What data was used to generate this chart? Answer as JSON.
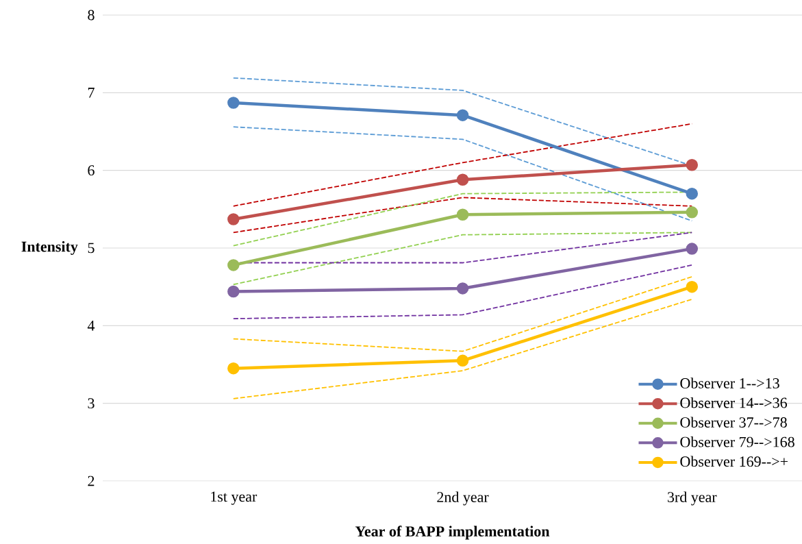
{
  "chart_data": {
    "type": "line",
    "xlabel": "Year of BAPP implementation",
    "ylabel": "Intensity",
    "categories": [
      "1st year",
      "2nd year",
      "3rd year"
    ],
    "ylim": [
      2,
      8
    ],
    "yticks": [
      2,
      3,
      4,
      5,
      6,
      7,
      8
    ],
    "grid": "y",
    "legend": "bottom right",
    "marker": "circle",
    "series": [
      {
        "color": "#5b9bd5",
        "values": [
          6.56,
          6.4,
          5.35
        ],
        "line_style": "dashed",
        "marker": "none"
      },
      {
        "color": "#5b9bd5",
        "values": [
          7.19,
          7.03,
          6.06
        ],
        "line_style": "dashed",
        "marker": "none"
      },
      {
        "color": "#c00000",
        "values": [
          5.2,
          5.65,
          5.54
        ],
        "line_style": "dashed",
        "marker": "none"
      },
      {
        "color": "#c00000",
        "values": [
          5.54,
          6.1,
          6.6
        ],
        "line_style": "dashed",
        "marker": "none"
      },
      {
        "color": "#92d050",
        "values": [
          4.53,
          5.17,
          5.2
        ],
        "line_style": "dashed",
        "marker": "none"
      },
      {
        "color": "#92d050",
        "values": [
          5.03,
          5.7,
          5.72
        ],
        "line_style": "dashed",
        "marker": "none"
      },
      {
        "color": "#7030a0",
        "values": [
          4.09,
          4.14,
          4.78
        ],
        "line_style": "dashed",
        "marker": "none"
      },
      {
        "color": "#7030a0",
        "values": [
          4.81,
          4.81,
          5.2
        ],
        "line_style": "dashed",
        "marker": "none"
      },
      {
        "color": "#ffc000",
        "values": [
          3.06,
          3.42,
          4.34
        ],
        "line_style": "dashed",
        "marker": "none"
      },
      {
        "color": "#ffc000",
        "values": [
          3.83,
          3.67,
          4.63
        ],
        "line_style": "dashed",
        "marker": "none"
      },
      {
        "name": "Observer 1-->13",
        "color": "#4f81bd",
        "values": [
          6.87,
          6.71,
          5.7
        ]
      },
      {
        "name": "Observer 14-->36",
        "color": "#c0504d",
        "values": [
          5.37,
          5.88,
          6.07
        ]
      },
      {
        "name": "Observer 37-->78",
        "color": "#9bbb59",
        "values": [
          4.78,
          5.43,
          5.46
        ]
      },
      {
        "name": "Observer 79-->168",
        "color": "#8064a2",
        "values": [
          4.44,
          4.48,
          4.99
        ]
      },
      {
        "name": "Observer 169-->+",
        "color": "#ffc000",
        "values": [
          3.45,
          3.55,
          4.5
        ]
      }
    ]
  }
}
